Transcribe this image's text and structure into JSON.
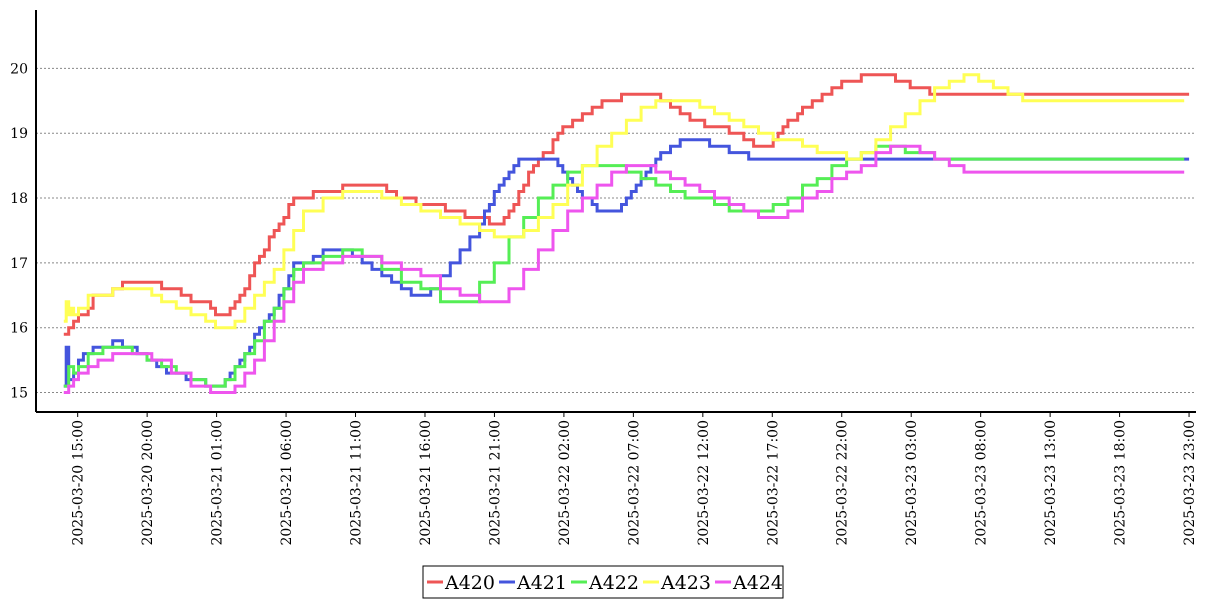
{
  "chart_data": {
    "type": "line",
    "step": true,
    "grid": "horizontal-dotted",
    "legend_position": "bottom-center",
    "ylim": [
      14.7,
      20.9
    ],
    "y_ticks": [
      15,
      16,
      17,
      18,
      19,
      20
    ],
    "x_start": "2025-03-20 14:00",
    "xlim": [
      "2025-03-20 12:00",
      "2025-03-23 23:30"
    ],
    "x_ticks": [
      "2025-03-20 15:00",
      "2025-03-20 20:00",
      "2025-03-21 01:00",
      "2025-03-21 06:00",
      "2025-03-21 11:00",
      "2025-03-21 16:00",
      "2025-03-21 21:00",
      "2025-03-22 02:00",
      "2025-03-22 07:00",
      "2025-03-22 12:00",
      "2025-03-22 17:00",
      "2025-03-22 22:00",
      "2025-03-23 03:00",
      "2025-03-23 08:00",
      "2025-03-23 13:00",
      "2025-03-23 18:00",
      "2025-03-23 23:00"
    ],
    "x_hours": [
      0,
      0.3,
      0.5,
      1,
      2,
      2.5,
      3,
      4,
      5,
      6,
      8,
      10,
      12,
      15,
      16,
      17,
      19,
      21,
      22,
      23,
      25,
      26,
      27,
      30,
      31,
      32,
      33,
      34,
      35,
      36,
      37,
      37.5,
      38,
      39,
      40,
      41,
      42,
      43,
      44,
      45,
      46,
      47,
      48,
      51,
      53,
      55,
      57,
      60,
      61,
      62,
      63,
      64,
      65,
      66,
      67,
      68,
      69,
      70,
      72,
      75,
      78,
      80,
      81,
      83,
      85,
      86,
      88,
      90,
      91,
      92,
      93,
      94,
      95,
      96,
      97,
      98,
      99,
      100,
      102,
      104,
      106,
      107,
      108,
      109,
      110,
      111,
      112,
      113,
      114,
      115,
      117,
      120,
      121,
      122,
      125,
      126,
      127,
      128,
      129,
      130,
      131,
      132,
      133,
      134,
      135,
      136,
      137,
      138,
      139,
      140,
      141,
      142,
      143,
      144,
      145,
      146,
      147,
      148,
      149,
      150,
      151,
      152,
      153,
      154,
      156,
      157,
      158,
      160,
      161,
      162,
      163,
      164,
      165,
      166,
      167,
      168,
      169,
      170,
      171,
      172,
      173,
      174,
      175,
      176,
      177,
      178,
      179,
      180,
      181,
      182,
      183,
      184,
      185,
      186,
      187,
      188,
      189,
      190,
      191,
      192,
      193,
      194,
      195,
      196,
      197,
      198,
      199,
      200,
      201,
      202,
      203,
      204,
      205,
      206,
      207,
      208,
      209,
      210,
      211,
      212,
      213,
      214,
      215,
      216,
      217,
      218,
      219,
      220,
      221,
      222,
      223,
      224,
      225,
      226,
      227,
      228,
      229,
      230
    ],
    "series": [
      {
        "name": "A420",
        "color": "#ee5555",
        "x": [
          0,
          1,
          2,
          3,
          4,
          5,
          6,
          8,
          10,
          12,
          18,
          20,
          24,
          26,
          30,
          31,
          32,
          33,
          34,
          35,
          36,
          37,
          38,
          39,
          40,
          41,
          42,
          43,
          44,
          45,
          46,
          47,
          48,
          51,
          57,
          61,
          66,
          68,
          72,
          78,
          82,
          87,
          88,
          89,
          90,
          91,
          92,
          93,
          94,
          95,
          96,
          97,
          98,
          100,
          101,
          102,
          104,
          106,
          108,
          110,
          114,
          116,
          120,
          122,
          124,
          126,
          128,
          131,
          136,
          137,
          138,
          139,
          140,
          141,
          142,
          143,
          144,
          145,
          146,
          147,
          148,
          149,
          150,
          151,
          153,
          155,
          157,
          159,
          163,
          167,
          170,
          173,
          177,
          181,
          186,
          188,
          190,
          193,
          196,
          200,
          202,
          204,
          206,
          208,
          210,
          212,
          214,
          216,
          218,
          222,
          224,
          226,
          228,
          230
        ],
        "y": [
          15.9,
          16.0,
          16.1,
          16.2,
          16.2,
          16.3,
          16.5,
          16.5,
          16.6,
          16.7,
          16.7,
          16.6,
          16.5,
          16.4,
          16.3,
          16.2,
          16.2,
          16.2,
          16.3,
          16.4,
          16.5,
          16.6,
          16.8,
          17.0,
          17.1,
          17.2,
          17.4,
          17.5,
          17.6,
          17.7,
          17.9,
          18.0,
          18.0,
          18.1,
          18.2,
          18.2,
          18.1,
          18.0,
          17.9,
          17.8,
          17.7,
          17.6,
          17.6,
          17.6,
          17.7,
          17.8,
          17.9,
          18.1,
          18.2,
          18.4,
          18.5,
          18.6,
          18.7,
          18.9,
          19.0,
          19.1,
          19.2,
          19.3,
          19.4,
          19.5,
          19.6,
          19.6,
          19.6,
          19.5,
          19.4,
          19.3,
          19.2,
          19.1,
          19.0,
          19.0,
          19.0,
          18.9,
          18.9,
          18.8,
          18.8,
          18.8,
          18.8,
          18.9,
          19.0,
          19.1,
          19.2,
          19.2,
          19.3,
          19.4,
          19.5,
          19.6,
          19.7,
          19.8,
          19.9,
          19.9,
          19.8,
          19.7,
          19.6,
          19.6,
          19.6,
          19.6,
          19.6,
          19.6,
          19.6,
          19.6,
          19.6,
          19.6,
          19.6,
          19.6,
          19.6,
          19.6,
          19.6,
          19.6,
          19.6,
          19.6,
          19.6,
          19.6,
          19.6,
          19.6
        ]
      },
      {
        "name": "A421",
        "color": "#4455dd",
        "x": [
          0,
          0.5,
          1,
          2,
          3,
          4,
          5,
          6,
          8,
          10,
          12,
          13,
          15,
          17,
          19,
          21,
          23,
          25,
          27,
          29,
          31,
          33,
          34,
          35,
          36,
          37,
          38,
          39,
          40,
          41,
          42,
          43,
          44,
          45,
          46,
          47,
          48,
          51,
          53,
          57,
          59,
          61,
          63,
          65,
          67,
          69,
          71,
          73,
          75,
          77,
          79,
          81,
          83,
          85,
          86,
          87,
          88,
          89,
          90,
          91,
          92,
          93,
          94,
          95,
          96,
          97,
          98,
          99,
          100,
          101,
          102,
          103,
          104,
          105,
          106,
          107,
          108,
          109,
          110,
          111,
          112,
          113,
          114,
          115,
          116,
          117,
          118,
          119,
          120,
          121,
          122,
          124,
          126,
          128,
          130,
          132,
          134,
          136,
          138,
          140,
          142,
          144,
          146,
          148,
          150,
          152,
          154,
          156,
          158,
          160,
          162,
          164,
          166,
          168,
          170,
          172,
          174,
          176,
          178,
          180,
          182,
          184,
          186,
          188,
          190,
          192,
          194,
          196,
          198,
          200,
          202,
          204,
          206,
          208,
          210,
          212,
          214,
          216,
          218,
          220,
          222,
          224,
          226,
          228,
          230
        ],
        "y": [
          15.1,
          15.7,
          15.2,
          15.3,
          15.5,
          15.6,
          15.6,
          15.7,
          15.7,
          15.8,
          15.7,
          15.7,
          15.6,
          15.5,
          15.4,
          15.3,
          15.3,
          15.2,
          15.2,
          15.1,
          15.1,
          15.2,
          15.3,
          15.4,
          15.5,
          15.6,
          15.7,
          15.9,
          16.0,
          16.1,
          16.2,
          16.3,
          16.5,
          16.6,
          16.8,
          17.0,
          17.0,
          17.1,
          17.2,
          17.2,
          17.1,
          17.0,
          16.9,
          16.8,
          16.7,
          16.6,
          16.5,
          16.5,
          16.6,
          16.8,
          17.0,
          17.2,
          17.4,
          17.6,
          17.8,
          17.9,
          18.1,
          18.2,
          18.3,
          18.4,
          18.5,
          18.6,
          18.6,
          18.6,
          18.6,
          18.6,
          18.6,
          18.6,
          18.6,
          18.5,
          18.4,
          18.3,
          18.2,
          18.1,
          18.0,
          18.0,
          17.9,
          17.8,
          17.8,
          17.8,
          17.8,
          17.8,
          17.9,
          18.0,
          18.1,
          18.2,
          18.3,
          18.4,
          18.5,
          18.6,
          18.7,
          18.8,
          18.9,
          18.9,
          18.9,
          18.8,
          18.8,
          18.7,
          18.7,
          18.6,
          18.6,
          18.6,
          18.6,
          18.6,
          18.6,
          18.6,
          18.6,
          18.6,
          18.6,
          18.6,
          18.6,
          18.6,
          18.6,
          18.6,
          18.6,
          18.6,
          18.6,
          18.6,
          18.6,
          18.6,
          18.6,
          18.6,
          18.6,
          18.6,
          18.6,
          18.6,
          18.6,
          18.6,
          18.6,
          18.6,
          18.6,
          18.6,
          18.6,
          18.6,
          18.6,
          18.6,
          18.6,
          18.6,
          18.6,
          18.6,
          18.6,
          18.6,
          18.6,
          18.6,
          18.6
        ]
      },
      {
        "name": "A422",
        "color": "#55ee55",
        "x": [
          0,
          1,
          2,
          3,
          5,
          8,
          11,
          14,
          17,
          20,
          23,
          26,
          29,
          31,
          33,
          35,
          37,
          39,
          41,
          43,
          45,
          47,
          49,
          53,
          57,
          61,
          65,
          69,
          73,
          77,
          81,
          85,
          88,
          91,
          94,
          97,
          100,
          103,
          106,
          109,
          112,
          115,
          118,
          121,
          124,
          127,
          130,
          133,
          136,
          139,
          142,
          145,
          148,
          151,
          154,
          157,
          160,
          163,
          166,
          169,
          172,
          175,
          178,
          181,
          184,
          187,
          190,
          193,
          196,
          199,
          202,
          205,
          208,
          211,
          214,
          217,
          220,
          223,
          226,
          229
        ],
        "y": [
          15.1,
          15.4,
          15.3,
          15.4,
          15.6,
          15.7,
          15.7,
          15.6,
          15.5,
          15.4,
          15.3,
          15.2,
          15.1,
          15.1,
          15.2,
          15.4,
          15.6,
          15.8,
          16.1,
          16.3,
          16.6,
          16.9,
          17.0,
          17.1,
          17.2,
          17.1,
          16.9,
          16.7,
          16.6,
          16.4,
          16.4,
          16.7,
          17.0,
          17.4,
          17.7,
          18.0,
          18.2,
          18.4,
          18.5,
          18.5,
          18.5,
          18.4,
          18.3,
          18.2,
          18.1,
          18.0,
          18.0,
          17.9,
          17.8,
          17.8,
          17.8,
          17.9,
          18.0,
          18.2,
          18.3,
          18.5,
          18.6,
          18.7,
          18.8,
          18.8,
          18.7,
          18.7,
          18.6,
          18.6,
          18.6,
          18.6,
          18.6,
          18.6,
          18.6,
          18.6,
          18.6,
          18.6,
          18.6,
          18.6,
          18.6,
          18.6,
          18.6,
          18.6,
          18.6,
          18.6
        ]
      },
      {
        "name": "A423",
        "color": "#ffff55",
        "x": [
          0,
          0.5,
          1,
          1.5,
          2,
          3,
          5,
          7,
          10,
          14,
          18,
          20,
          23,
          26,
          29,
          31,
          33,
          35,
          37,
          39,
          41,
          43,
          45,
          47,
          49,
          53,
          57,
          61,
          65,
          69,
          73,
          77,
          81,
          85,
          88,
          91,
          94,
          97,
          100,
          103,
          106,
          109,
          112,
          115,
          118,
          121,
          124,
          127,
          130,
          133,
          136,
          139,
          142,
          145,
          148,
          151,
          154,
          157,
          160,
          163,
          166,
          169,
          172,
          175,
          178,
          181,
          184,
          187,
          190,
          193,
          196,
          199,
          202,
          205,
          208,
          211,
          214,
          217,
          220,
          223,
          226,
          229
        ],
        "y": [
          16.1,
          16.4,
          16.2,
          16.3,
          16.2,
          16.3,
          16.5,
          16.5,
          16.6,
          16.6,
          16.5,
          16.4,
          16.3,
          16.2,
          16.1,
          16.0,
          16.0,
          16.1,
          16.3,
          16.5,
          16.7,
          16.9,
          17.2,
          17.5,
          17.8,
          18.0,
          18.1,
          18.1,
          18.0,
          17.9,
          17.8,
          17.7,
          17.6,
          17.5,
          17.4,
          17.4,
          17.5,
          17.7,
          17.9,
          18.2,
          18.5,
          18.8,
          19.0,
          19.2,
          19.4,
          19.5,
          19.5,
          19.5,
          19.4,
          19.3,
          19.2,
          19.1,
          19.0,
          18.9,
          18.9,
          18.8,
          18.7,
          18.7,
          18.6,
          18.7,
          18.9,
          19.1,
          19.3,
          19.5,
          19.7,
          19.8,
          19.9,
          19.8,
          19.7,
          19.6,
          19.5,
          19.5,
          19.5,
          19.5,
          19.5,
          19.5,
          19.5,
          19.5,
          19.5,
          19.5,
          19.5,
          19.5
        ]
      },
      {
        "name": "A424",
        "color": "#ee55ee",
        "x": [
          0,
          1,
          2,
          3,
          5,
          7,
          10,
          14,
          18,
          22,
          26,
          30,
          34,
          35,
          37,
          39,
          41,
          43,
          45,
          47,
          49,
          53,
          57,
          61,
          65,
          69,
          73,
          77,
          81,
          85,
          88,
          91,
          94,
          97,
          100,
          103,
          106,
          109,
          112,
          115,
          118,
          121,
          124,
          127,
          130,
          133,
          136,
          139,
          142,
          145,
          148,
          151,
          154,
          157,
          160,
          163,
          166,
          169,
          172,
          175,
          178,
          181,
          184,
          187,
          190,
          193,
          196,
          199,
          202,
          205,
          208,
          211,
          214,
          217,
          220,
          223,
          226,
          229
        ],
        "y": [
          15.0,
          15.1,
          15.2,
          15.3,
          15.4,
          15.5,
          15.6,
          15.6,
          15.5,
          15.3,
          15.1,
          15.0,
          15.0,
          15.1,
          15.3,
          15.5,
          15.8,
          16.1,
          16.4,
          16.7,
          16.9,
          17.0,
          17.1,
          17.1,
          17.0,
          16.9,
          16.8,
          16.6,
          16.5,
          16.4,
          16.4,
          16.6,
          16.9,
          17.2,
          17.5,
          17.8,
          18.0,
          18.2,
          18.4,
          18.5,
          18.5,
          18.4,
          18.3,
          18.2,
          18.1,
          18.0,
          17.9,
          17.8,
          17.7,
          17.7,
          17.8,
          18.0,
          18.1,
          18.3,
          18.4,
          18.5,
          18.7,
          18.8,
          18.8,
          18.7,
          18.6,
          18.5,
          18.4,
          18.4,
          18.4,
          18.4,
          18.4,
          18.4,
          18.4,
          18.4,
          18.4,
          18.4,
          18.4,
          18.4,
          18.4,
          18.4,
          18.4,
          18.4
        ]
      }
    ]
  }
}
